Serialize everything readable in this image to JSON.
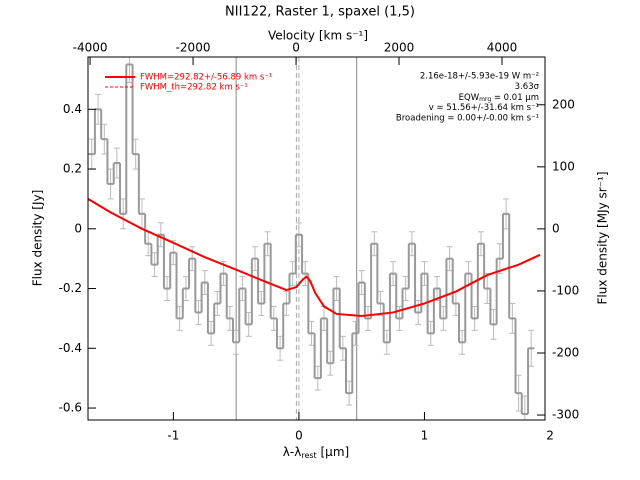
{
  "chart_data": {
    "type": "step",
    "title": "NII122, Raster 1, spaxel (1,5)",
    "xlabel": {
      "main": "λ-λ",
      "sub": "rest",
      "tail": " [μm]"
    },
    "x2label": "Velocity [km s⁻¹]",
    "ylabel": "Flux density [Jy]",
    "y2label": "Flux density [MJy sr⁻¹]",
    "xlim": [
      -1.68,
      1.96
    ],
    "xticks": [
      -1,
      0,
      1,
      2
    ],
    "x2lim": [
      -4040,
      4835
    ],
    "x2ticks": [
      -4000,
      -2000,
      0,
      2000,
      4000
    ],
    "ylim": [
      -0.64,
      0.575
    ],
    "yticks": [
      -0.6,
      -0.4,
      -0.2,
      0.0,
      0.2,
      0.4
    ],
    "y2lim": [
      -308,
      277
    ],
    "y2ticks": [
      -300,
      -200,
      -100,
      0,
      100,
      200
    ],
    "spectrum": {
      "color": "#999999",
      "error_color": "#bbbbbb",
      "width": 0.05,
      "x": [
        -1.65,
        -1.6,
        -1.55,
        -1.5,
        -1.45,
        -1.4,
        -1.35,
        -1.3,
        -1.25,
        -1.2,
        -1.15,
        -1.1,
        -1.05,
        -1.0,
        -0.95,
        -0.9,
        -0.85,
        -0.8,
        -0.75,
        -0.7,
        -0.65,
        -0.6,
        -0.55,
        -0.5,
        -0.45,
        -0.4,
        -0.35,
        -0.3,
        -0.25,
        -0.2,
        -0.15,
        -0.1,
        -0.05,
        0.0,
        0.05,
        0.1,
        0.15,
        0.2,
        0.25,
        0.3,
        0.35,
        0.4,
        0.45,
        0.5,
        0.55,
        0.6,
        0.65,
        0.7,
        0.75,
        0.8,
        0.85,
        0.9,
        0.95,
        1.0,
        1.05,
        1.1,
        1.15,
        1.2,
        1.25,
        1.3,
        1.35,
        1.4,
        1.45,
        1.5,
        1.55,
        1.6,
        1.65,
        1.7,
        1.75,
        1.8,
        1.85
      ],
      "values": [
        0.25,
        0.4,
        0.3,
        0.15,
        0.22,
        0.05,
        0.55,
        0.25,
        0.05,
        -0.05,
        -0.12,
        -0.02,
        -0.2,
        -0.08,
        -0.3,
        -0.2,
        -0.1,
        -0.28,
        -0.18,
        -0.35,
        -0.25,
        -0.15,
        -0.3,
        -0.38,
        -0.2,
        -0.32,
        -0.1,
        -0.25,
        -0.05,
        -0.3,
        -0.4,
        -0.25,
        -0.15,
        -0.02,
        -0.15,
        -0.35,
        -0.5,
        -0.3,
        -0.45,
        -0.2,
        -0.4,
        -0.55,
        -0.35,
        -0.18,
        -0.3,
        -0.05,
        -0.25,
        -0.38,
        -0.15,
        -0.3,
        -0.2,
        -0.05,
        -0.28,
        -0.15,
        -0.35,
        -0.2,
        -0.3,
        -0.1,
        -0.25,
        -0.38,
        -0.15,
        -0.3,
        -0.05,
        -0.2,
        -0.32,
        -0.1,
        0.05,
        -0.3,
        -0.55,
        -0.62,
        -0.4
      ],
      "errors": [
        0.05,
        0.05,
        0.05,
        0.05,
        0.05,
        0.05,
        0.06,
        0.05,
        0.05,
        0.04,
        0.04,
        0.04,
        0.04,
        0.04,
        0.04,
        0.04,
        0.04,
        0.04,
        0.04,
        0.04,
        0.04,
        0.04,
        0.04,
        0.04,
        0.04,
        0.04,
        0.04,
        0.04,
        0.04,
        0.04,
        0.04,
        0.04,
        0.04,
        0.04,
        0.04,
        0.04,
        0.04,
        0.04,
        0.04,
        0.04,
        0.04,
        0.04,
        0.04,
        0.04,
        0.04,
        0.04,
        0.04,
        0.04,
        0.04,
        0.04,
        0.04,
        0.04,
        0.04,
        0.04,
        0.04,
        0.04,
        0.04,
        0.04,
        0.04,
        0.04,
        0.04,
        0.04,
        0.04,
        0.05,
        0.05,
        0.05,
        0.05,
        0.05,
        0.06,
        0.06,
        0.06
      ]
    },
    "fit": {
      "color": "#ff0000",
      "x": [
        -1.68,
        -1.5,
        -1.25,
        -1.0,
        -0.75,
        -0.5,
        -0.25,
        -0.1,
        -0.02,
        0.03,
        0.06,
        0.09,
        0.13,
        0.2,
        0.3,
        0.5,
        0.75,
        1.0,
        1.25,
        1.5,
        1.75,
        1.92
      ],
      "values": [
        0.1,
        0.055,
        0.0,
        -0.047,
        -0.095,
        -0.137,
        -0.18,
        -0.205,
        -0.195,
        -0.17,
        -0.16,
        -0.175,
        -0.215,
        -0.26,
        -0.285,
        -0.292,
        -0.28,
        -0.25,
        -0.21,
        -0.155,
        -0.12,
        -0.087
      ]
    },
    "vlines": [
      -0.5,
      0.46
    ],
    "vlines_dashed": [
      -0.02,
      0.0
    ],
    "legend": [
      "FWHM=292.82+/-56.89 km s⁻¹",
      "FWHM_th=292.82 km s⁻¹"
    ],
    "annotations": [
      "2.16e-18+/-5.93e-19 W m⁻²",
      "3.63σ",
      {
        "main": "EQW",
        "sub": "mrg",
        "tail": " = 0.01 μm"
      },
      "v = 51.56+/-31.64 km s⁻¹",
      "Broadening = 0.00+/-0.00 km s⁻¹"
    ]
  }
}
